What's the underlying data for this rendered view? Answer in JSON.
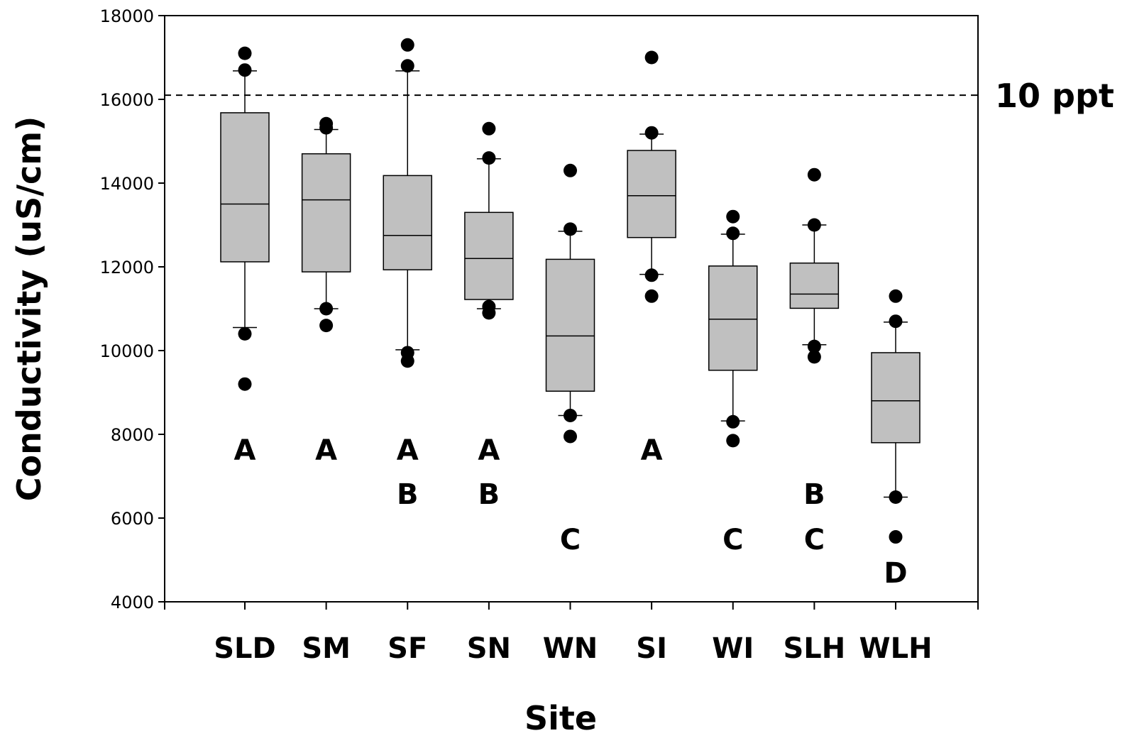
{
  "chart_data": {
    "type": "box",
    "xlabel": "Site",
    "ylabel": "Conductivity (uS/cm)",
    "ylim": [
      4000,
      18000
    ],
    "yticks": [
      4000,
      6000,
      8000,
      10000,
      12000,
      14000,
      16000,
      18000
    ],
    "grid": false,
    "categories": [
      "SLD",
      "SM",
      "SF",
      "SN",
      "WN",
      "SI",
      "WI",
      "SLH",
      "WLH"
    ],
    "boxes": [
      {
        "site": "SLD",
        "whisker_low": 10550,
        "q1": 12120,
        "median": 13500,
        "q3": 15680,
        "whisker_high": 16680,
        "outliers": [
          17100,
          16700,
          10400,
          9200
        ],
        "groups": [
          "A"
        ]
      },
      {
        "site": "SM",
        "whisker_low": 11000,
        "q1": 11880,
        "median": 13600,
        "q3": 14700,
        "whisker_high": 15280,
        "outliers": [
          15420,
          15320,
          11000,
          10600
        ],
        "groups": [
          "A"
        ]
      },
      {
        "site": "SF",
        "whisker_low": 10020,
        "q1": 11930,
        "median": 12750,
        "q3": 14180,
        "whisker_high": 16680,
        "outliers": [
          17300,
          16800,
          9950,
          9750
        ],
        "groups": [
          "A",
          "B"
        ]
      },
      {
        "site": "SN",
        "whisker_low": 11000,
        "q1": 11220,
        "median": 12200,
        "q3": 13300,
        "whisker_high": 14580,
        "outliers": [
          15300,
          14600,
          11050,
          10900
        ],
        "groups": [
          "A",
          "B"
        ]
      },
      {
        "site": "WN",
        "whisker_low": 8450,
        "q1": 9030,
        "median": 10350,
        "q3": 12180,
        "whisker_high": 12850,
        "outliers": [
          14300,
          12900,
          8450,
          7950
        ],
        "groups": [
          "C"
        ]
      },
      {
        "site": "SI",
        "whisker_low": 11820,
        "q1": 12700,
        "median": 13700,
        "q3": 14780,
        "whisker_high": 15170,
        "outliers": [
          17000,
          15200,
          11800,
          11300
        ],
        "groups": [
          "A"
        ]
      },
      {
        "site": "WI",
        "whisker_low": 8320,
        "q1": 9530,
        "median": 10750,
        "q3": 12020,
        "whisker_high": 12780,
        "outliers": [
          13200,
          12800,
          8300,
          7850
        ],
        "groups": [
          "C"
        ]
      },
      {
        "site": "SLH",
        "whisker_low": 10140,
        "q1": 11010,
        "median": 11350,
        "q3": 12090,
        "whisker_high": 13000,
        "outliers": [
          14200,
          13000,
          10100,
          9850
        ],
        "groups": [
          "B",
          "C"
        ]
      },
      {
        "site": "WLH",
        "whisker_low": 6500,
        "q1": 7800,
        "median": 8800,
        "q3": 9950,
        "whisker_high": 10680,
        "outliers": [
          11300,
          10700,
          6500,
          5550
        ],
        "groups": [
          "D"
        ]
      }
    ],
    "reference_line": {
      "value": 16100,
      "label": "10 ppt",
      "style": "dashed"
    },
    "colors": {
      "box_fill": "#c0c0c0",
      "line": "#000000",
      "outlier": "#000000"
    }
  }
}
